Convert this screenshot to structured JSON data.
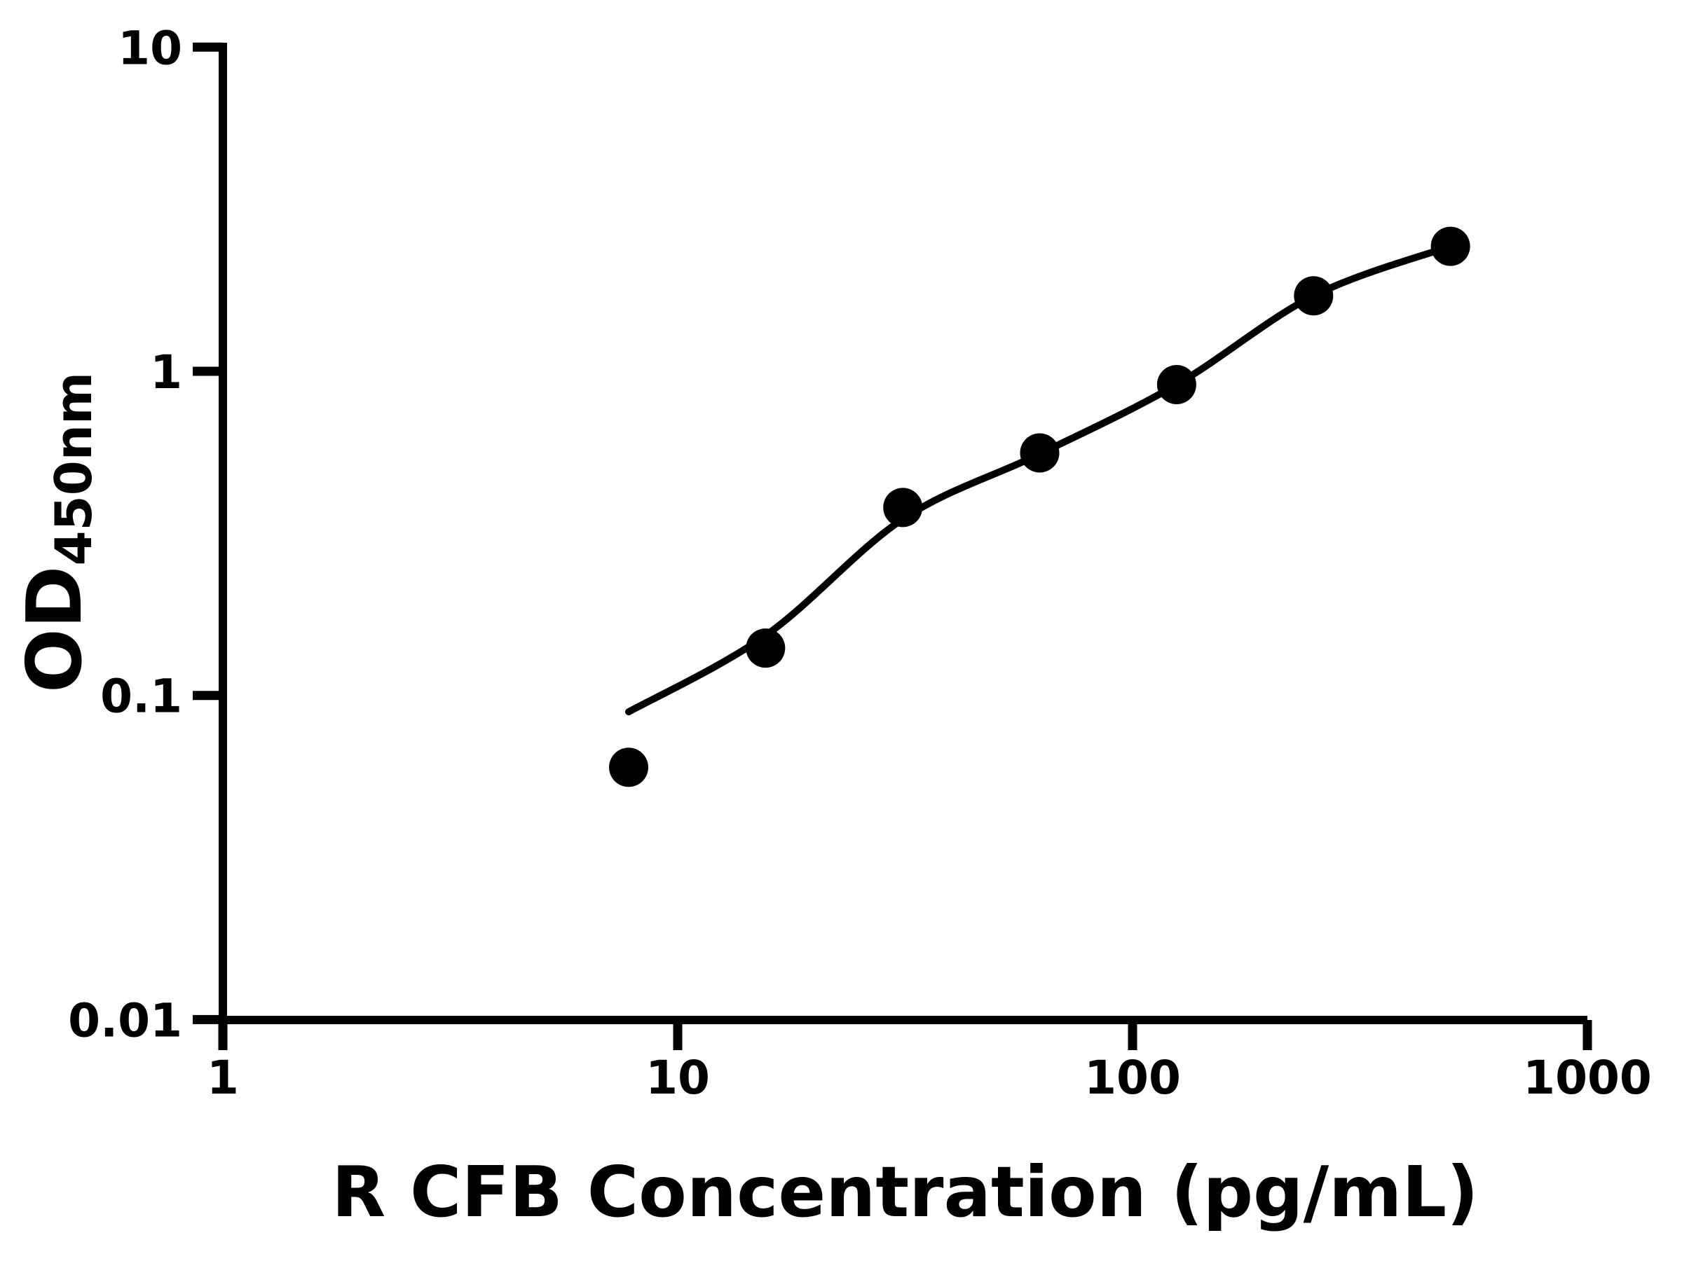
{
  "figure": {
    "background_color": "#ffffff",
    "ink_color": "#000000"
  },
  "chart_data": {
    "type": "scatter",
    "title": "",
    "xlabel": "R CFB Concentration (pg/mL)",
    "ylabel_main": "OD",
    "ylabel_subscript": "450nm",
    "x_scale": "log",
    "y_scale": "log",
    "xlim": [
      1,
      1000
    ],
    "ylim": [
      0.01,
      10
    ],
    "x_ticks": [
      1,
      10,
      100,
      1000
    ],
    "x_tick_labels": [
      "1",
      "10",
      "100",
      "1000"
    ],
    "y_ticks": [
      10,
      1,
      0.1,
      0.01
    ],
    "y_tick_labels": [
      "10",
      "1",
      "0.1",
      "0.01"
    ],
    "grid": false,
    "legend": "none",
    "series": [
      {
        "name": "standard-points",
        "type": "scatter",
        "marker": "filled-circle",
        "color": "#000000",
        "x": [
          7.8,
          15.6,
          31.25,
          62.5,
          125,
          250,
          500
        ],
        "y": [
          0.06,
          0.14,
          0.38,
          0.56,
          0.91,
          1.71,
          2.43
        ]
      },
      {
        "name": "fitted-curve",
        "type": "line",
        "color": "#000000",
        "x": [
          7.8,
          15.6,
          31.25,
          62.5,
          125,
          250,
          500
        ],
        "y": [
          0.089,
          0.153,
          0.35,
          0.556,
          0.91,
          1.71,
          2.43
        ]
      }
    ]
  }
}
